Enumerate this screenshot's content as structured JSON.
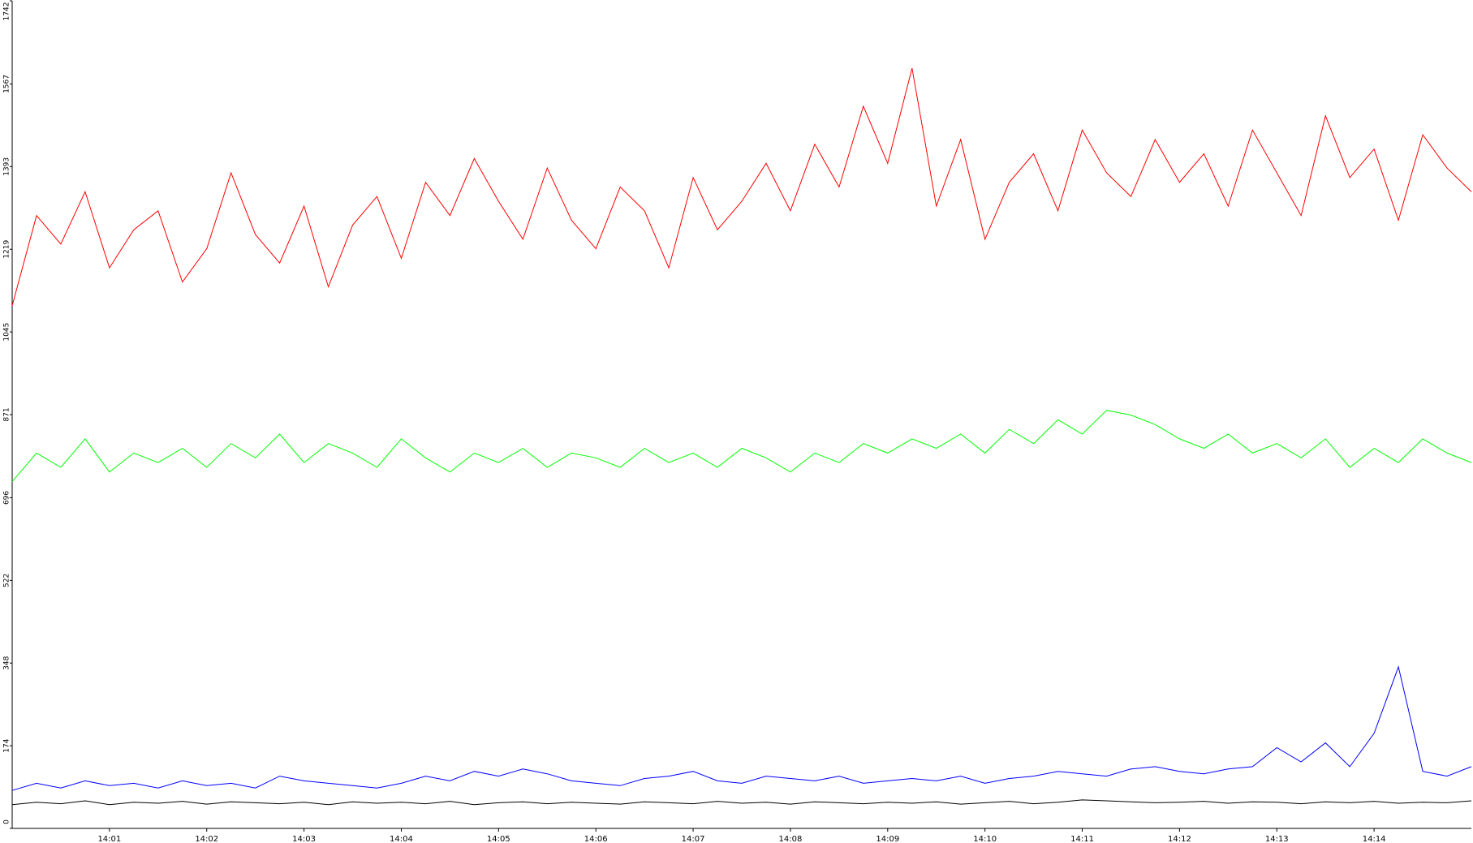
{
  "chart_data": {
    "type": "line",
    "categories": [
      null,
      null,
      null,
      null,
      "14:01",
      null,
      null,
      null,
      "14:02",
      null,
      null,
      null,
      "14:03",
      null,
      null,
      null,
      "14:04",
      null,
      null,
      null,
      "14:05",
      null,
      null,
      null,
      "14:06",
      null,
      null,
      null,
      "14:07",
      null,
      null,
      null,
      "14:08",
      null,
      null,
      null,
      "14:09",
      null,
      null,
      null,
      "14:10",
      null,
      null,
      null,
      "14:11",
      null,
      null,
      null,
      "14:12",
      null,
      null,
      null,
      "14:13",
      null,
      null,
      null,
      "14:14",
      null,
      null,
      null,
      null
    ],
    "series": [
      {
        "color": "#ff0000",
        "values": [
          1100,
          1290,
          1230,
          1340,
          1180,
          1260,
          1300,
          1150,
          1220,
          1380,
          1250,
          1190,
          1310,
          1140,
          1270,
          1330,
          1200,
          1360,
          1290,
          1410,
          1320,
          1240,
          1390,
          1280,
          1220,
          1350,
          1300,
          1180,
          1370,
          1260,
          1320,
          1400,
          1300,
          1440,
          1350,
          1520,
          1400,
          1600,
          1310,
          1450,
          1240,
          1360,
          1420,
          1300,
          1470,
          1380,
          1330,
          1450,
          1360,
          1420,
          1310,
          1470,
          1380,
          1290,
          1500,
          1370,
          1430,
          1280,
          1460,
          1390,
          1340
        ]
      },
      {
        "color": "#00ff00",
        "values": [
          730,
          790,
          760,
          820,
          750,
          790,
          770,
          800,
          760,
          810,
          780,
          830,
          770,
          810,
          790,
          760,
          820,
          780,
          750,
          790,
          770,
          800,
          760,
          790,
          780,
          760,
          800,
          770,
          790,
          760,
          800,
          780,
          750,
          790,
          770,
          810,
          790,
          820,
          800,
          830,
          790,
          840,
          810,
          860,
          830,
          880,
          870,
          850,
          820,
          800,
          830,
          790,
          810,
          780,
          820,
          760,
          800,
          770,
          820,
          790,
          770
        ]
      },
      {
        "color": "#0000ff",
        "values": [
          80,
          95,
          85,
          100,
          90,
          95,
          85,
          100,
          90,
          95,
          85,
          110,
          100,
          95,
          90,
          85,
          95,
          110,
          100,
          120,
          110,
          125,
          115,
          100,
          95,
          90,
          105,
          110,
          120,
          100,
          95,
          110,
          105,
          100,
          110,
          95,
          100,
          105,
          100,
          110,
          95,
          105,
          110,
          120,
          115,
          110,
          125,
          130,
          120,
          115,
          125,
          130,
          170,
          140,
          180,
          130,
          200,
          340,
          120,
          110,
          130
        ]
      },
      {
        "color": "#000000",
        "values": [
          50,
          55,
          52,
          58,
          50,
          55,
          53,
          57,
          51,
          56,
          54,
          52,
          55,
          50,
          56,
          53,
          55,
          52,
          57,
          50,
          54,
          56,
          52,
          55,
          53,
          51,
          56,
          54,
          52,
          57,
          53,
          55,
          51,
          56,
          54,
          52,
          55,
          53,
          56,
          51,
          54,
          57,
          52,
          55,
          60,
          58,
          56,
          54,
          55,
          57,
          53,
          56,
          55,
          52,
          56,
          54,
          57,
          53,
          55,
          54,
          58
        ]
      }
    ],
    "ylim": [
      0,
      1742
    ],
    "yticks": [
      0,
      174,
      348,
      522,
      696,
      871,
      1045,
      1219,
      1393,
      1567,
      1742
    ]
  }
}
